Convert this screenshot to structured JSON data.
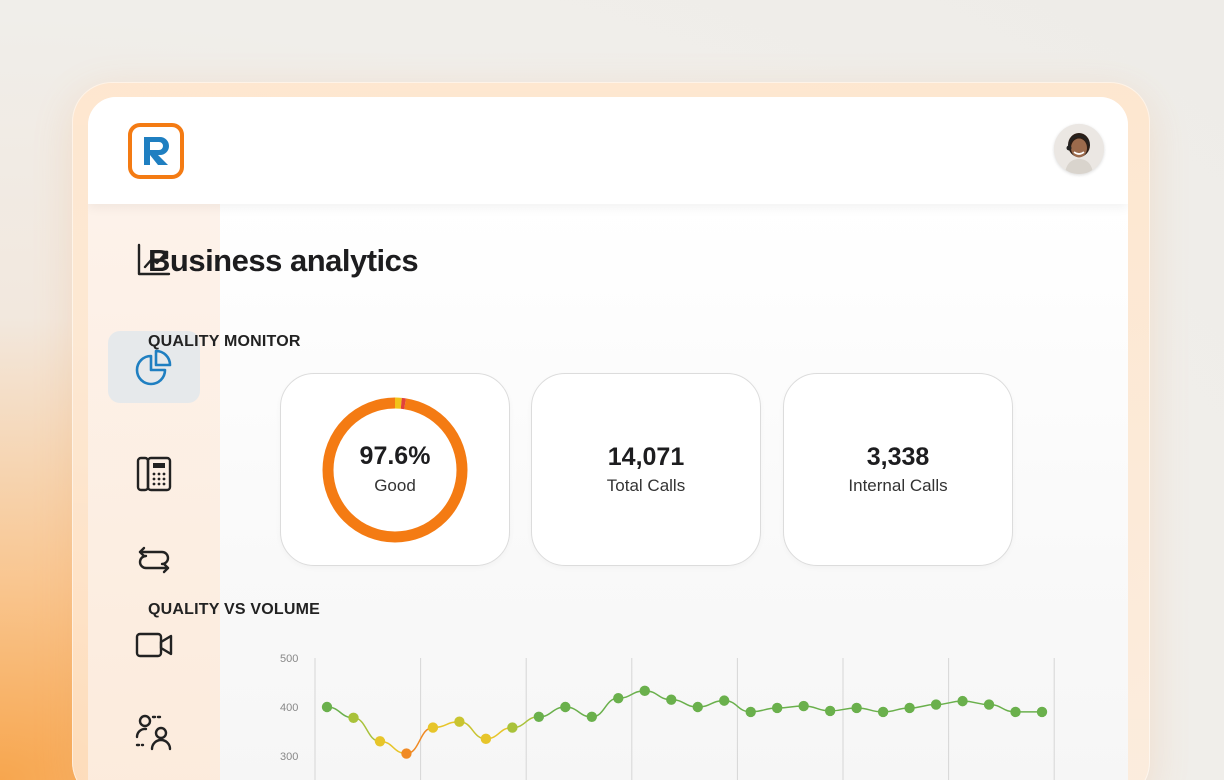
{
  "header": {
    "logo_letter": "R",
    "brand_color": "#f47b13",
    "logo_blue": "#1f7fc1"
  },
  "sidebar": {
    "items": [
      {
        "name": "analytics-trend-icon",
        "active": false
      },
      {
        "name": "pie-chart-icon",
        "active": true
      },
      {
        "name": "phone-dialer-icon",
        "active": false
      },
      {
        "name": "transfer-arrows-icon",
        "active": false
      },
      {
        "name": "video-camera-icon",
        "active": false
      },
      {
        "name": "users-icon",
        "active": false
      }
    ]
  },
  "main": {
    "title": "Business analytics",
    "quality_monitor_label": "QUALITY MONITOR",
    "quality_vs_volume_label": "QUALITY VS VOLUME",
    "cards": [
      {
        "value": "97.6%",
        "label": "Good"
      },
      {
        "value": "14,071",
        "label": "Total Calls"
      },
      {
        "value": "3,338",
        "label": "Internal Calls"
      }
    ],
    "donut": {
      "good_percent": 97.6,
      "colors": {
        "good": "#f47b13",
        "fair": "#f2c318",
        "poor": "#e2413a"
      },
      "fair_percent": 1.5,
      "poor_percent": 0.9
    }
  },
  "chart_data": {
    "type": "line",
    "title": "QUALITY VS VOLUME",
    "yticks": [
      "500",
      "400",
      "300"
    ],
    "ylim": [
      270,
      500
    ],
    "grid": true,
    "series": [
      {
        "values": [
          400,
          378,
          330,
          305,
          358,
          370,
          335,
          358,
          380,
          400,
          380,
          418,
          433,
          415,
          400,
          413,
          390,
          398,
          402,
          392,
          398,
          390,
          398,
          405,
          412,
          405,
          390,
          390
        ],
        "colors": [
          "#6ab04c",
          "#a9c23a",
          "#e7c52a",
          "#f08a24",
          "#e7c52a",
          "#c9c430",
          "#e7c52a",
          "#a9c23a",
          "#6ab04c",
          "#6ab04c",
          "#6ab04c",
          "#6ab04c",
          "#6ab04c",
          "#6ab04c",
          "#6ab04c",
          "#6ab04c",
          "#6ab04c",
          "#6ab04c",
          "#6ab04c",
          "#6ab04c",
          "#6ab04c",
          "#6ab04c",
          "#6ab04c",
          "#6ab04c",
          "#6ab04c",
          "#6ab04c",
          "#6ab04c",
          "#6ab04c"
        ]
      }
    ]
  }
}
